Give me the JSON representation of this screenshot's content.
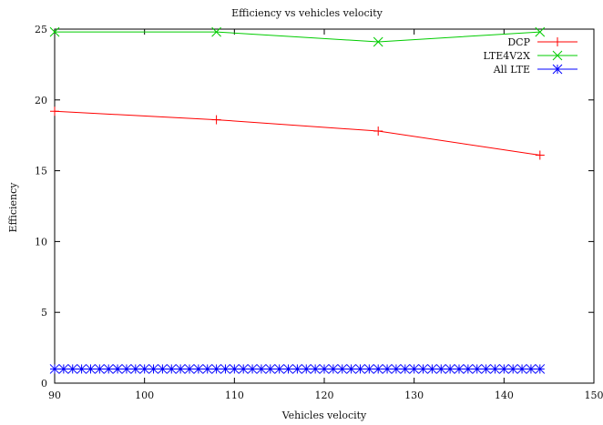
{
  "chart_data": {
    "type": "line",
    "title": "Efficiency vs vehicles velocity",
    "xlabel": "Vehicles velocity",
    "ylabel": "Efficiency",
    "xlim": [
      90,
      150
    ],
    "ylim": [
      0,
      25
    ],
    "xticks": [
      "90",
      "100",
      "110",
      "120",
      "130",
      "140",
      "150"
    ],
    "yticks": [
      "0",
      "5",
      "10",
      "15",
      "20",
      "25"
    ],
    "grid": false,
    "legend_position": "top-right",
    "series": [
      {
        "name": "DCP",
        "color": "#ff0000",
        "marker": "plus",
        "x": [
          90,
          108,
          126,
          144
        ],
        "y": [
          19.2,
          18.6,
          17.8,
          16.1
        ]
      },
      {
        "name": "LTE4V2X",
        "color": "#00cc00",
        "marker": "cross",
        "x": [
          90,
          108,
          126,
          144
        ],
        "y": [
          24.8,
          24.8,
          24.1,
          24.8
        ]
      },
      {
        "name": "All LTE",
        "color": "#0000ff",
        "marker": "star",
        "x": [
          90,
          91,
          92,
          93,
          94,
          95,
          96,
          97,
          98,
          99,
          100,
          101,
          102,
          103,
          104,
          105,
          106,
          107,
          108,
          109,
          110,
          111,
          112,
          113,
          114,
          115,
          116,
          117,
          118,
          119,
          120,
          121,
          122,
          123,
          124,
          125,
          126,
          127,
          128,
          129,
          130,
          131,
          132,
          133,
          134,
          135,
          136,
          137,
          138,
          139,
          140,
          141,
          142,
          143,
          144
        ],
        "y": [
          1,
          1,
          1,
          1,
          1,
          1,
          1,
          1,
          1,
          1,
          1,
          1,
          1,
          1,
          1,
          1,
          1,
          1,
          1,
          1,
          1,
          1,
          1,
          1,
          1,
          1,
          1,
          1,
          1,
          1,
          1,
          1,
          1,
          1,
          1,
          1,
          1,
          1,
          1,
          1,
          1,
          1,
          1,
          1,
          1,
          1,
          1,
          1,
          1,
          1,
          1,
          1,
          1,
          1,
          1
        ]
      }
    ]
  }
}
